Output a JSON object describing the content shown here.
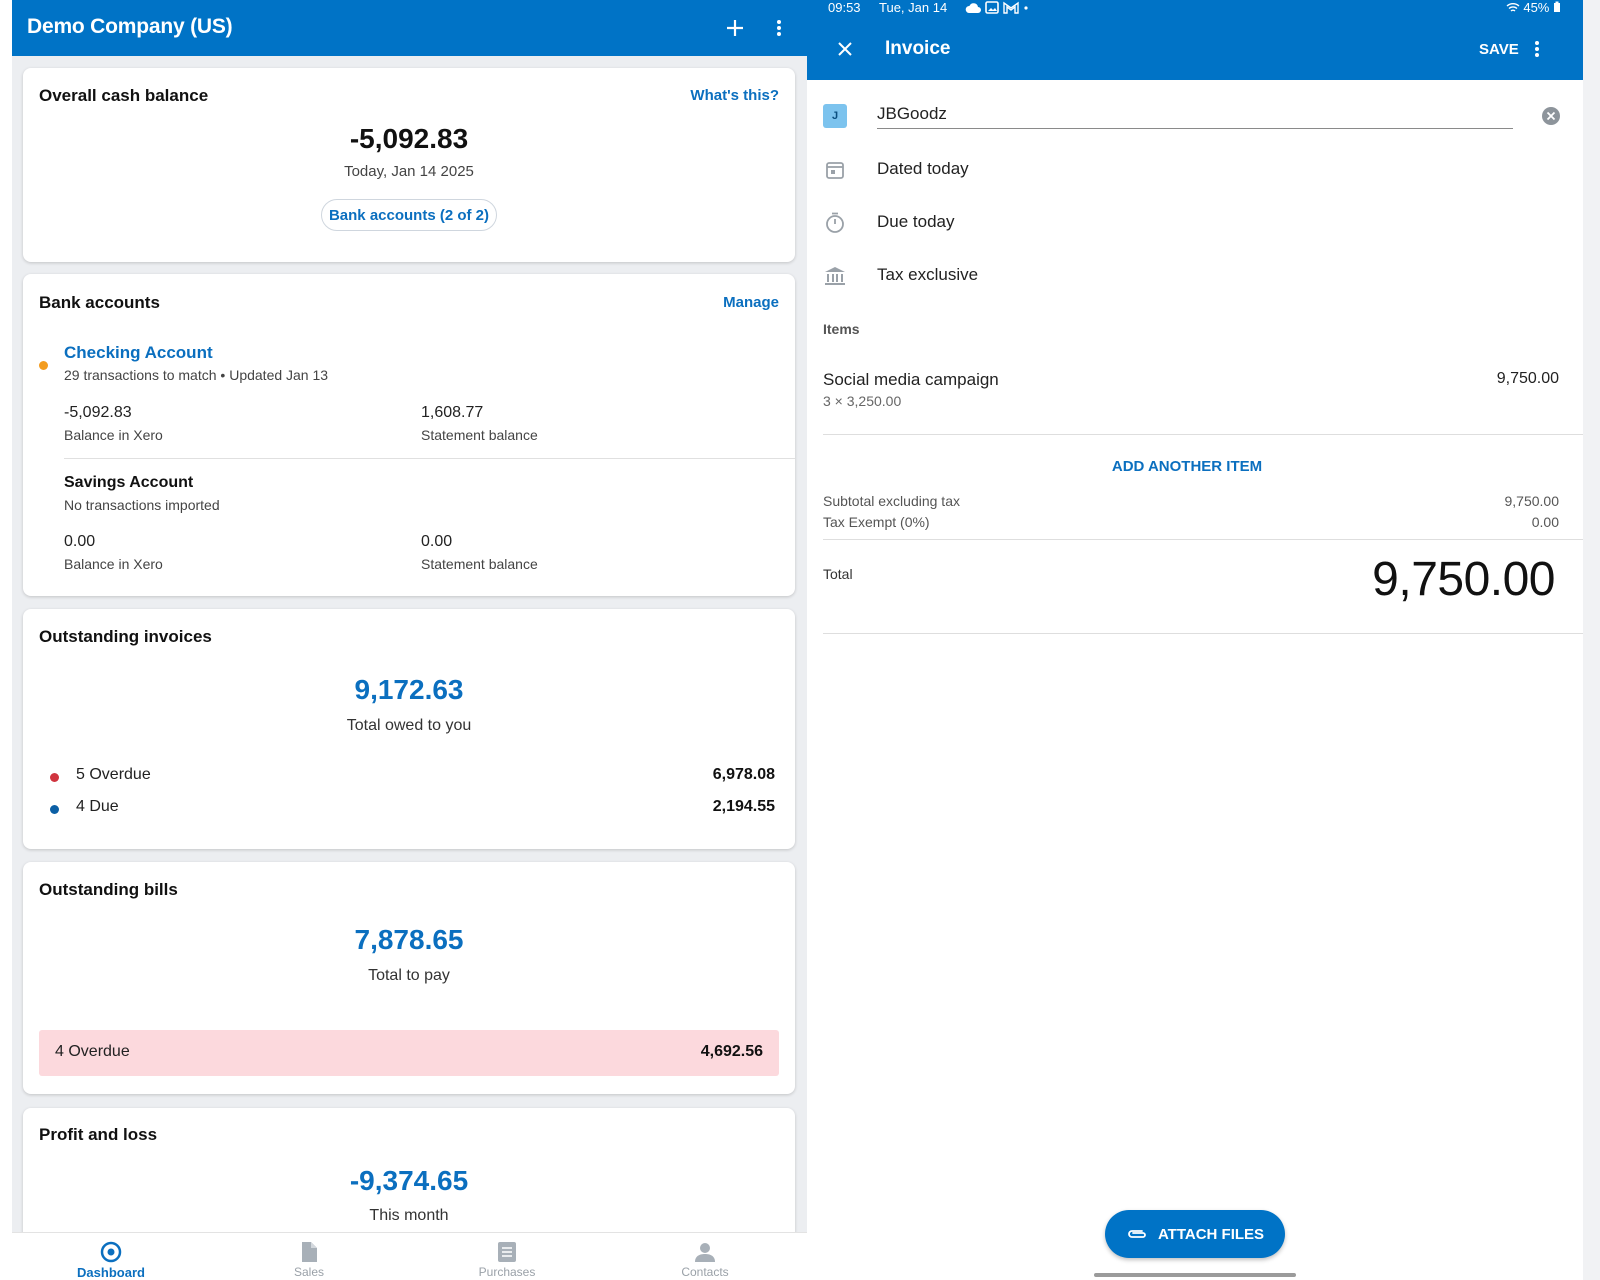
{
  "dashboard": {
    "company_name": "Demo Company (US)",
    "header_icons": [
      "plus-icon",
      "more-vert-icon"
    ],
    "cash_balance": {
      "title": "Overall cash balance",
      "whats_this": "What's this?",
      "amount": "-5,092.83",
      "date": "Today, Jan 14 2025",
      "bank_accounts_button": "Bank accounts (2 of 2)"
    },
    "bank_accounts": {
      "title": "Bank accounts",
      "manage": "Manage",
      "accounts": [
        {
          "name": "Checking Account",
          "status": "29 transactions to match • Updated Jan 13",
          "status_color": "#f39c1f",
          "balance_xero": "-5,092.83",
          "balance_xero_label": "Balance in Xero",
          "statement_balance": "1,608.77",
          "statement_balance_label": "Statement balance"
        },
        {
          "name": "Savings Account",
          "status": "No transactions imported",
          "balance_xero": "0.00",
          "balance_xero_label": "Balance in Xero",
          "statement_balance": "0.00",
          "statement_balance_label": "Statement balance"
        }
      ]
    },
    "outstanding_invoices": {
      "title": "Outstanding invoices",
      "total": "9,172.63",
      "total_label": "Total owed to you",
      "rows": [
        {
          "label": "5 Overdue",
          "value": "6,978.08",
          "dot_color": "#d0343f"
        },
        {
          "label": "4 Due",
          "value": "2,194.55",
          "dot_color": "#0b5fa5"
        }
      ]
    },
    "outstanding_bills": {
      "title": "Outstanding bills",
      "total": "7,878.65",
      "total_label": "Total to pay",
      "overdue_label": "4 Overdue",
      "overdue_value": "4,692.56",
      "overdue_bg": "#fcd9dd"
    },
    "profit_loss": {
      "title": "Profit and loss",
      "amount": "-9,374.65",
      "period": "This month"
    },
    "bottom_nav": [
      {
        "label": "Dashboard",
        "icon": "dashboard-icon",
        "active": true
      },
      {
        "label": "Sales",
        "icon": "sales-icon",
        "active": false
      },
      {
        "label": "Purchases",
        "icon": "purchases-icon",
        "active": false
      },
      {
        "label": "Contacts",
        "icon": "contacts-icon",
        "active": false
      }
    ]
  },
  "status_bar": {
    "time": "09:53",
    "date": "Tue, Jan 14",
    "battery": "45%",
    "icons": [
      "cloud-icon",
      "image-icon",
      "gmail-icon",
      "dot-icon",
      "wifi-icon",
      "battery-icon"
    ]
  },
  "invoice": {
    "title": "Invoice",
    "save": "SAVE",
    "contact_initial": "J",
    "contact_name": "JBGoodz",
    "dated": "Dated today",
    "due": "Due today",
    "tax_mode": "Tax exclusive",
    "items_label": "Items",
    "items": [
      {
        "name": "Social media campaign",
        "qty_price": "3 × 3,250.00",
        "amount": "9,750.00"
      }
    ],
    "add_item": "ADD ANOTHER ITEM",
    "subtotal_label": "Subtotal excluding tax",
    "subtotal": "9,750.00",
    "tax_label": "Tax Exempt (0%)",
    "tax": "0.00",
    "total_label": "Total",
    "total": "9,750.00",
    "attach_files": "ATTACH FILES"
  },
  "colors": {
    "brand_blue": "#0073c6",
    "link_blue": "#0b6fbf",
    "overdue_red": "#d0343f",
    "due_blue": "#0b5fa5",
    "warning_orange": "#f39c1f"
  }
}
